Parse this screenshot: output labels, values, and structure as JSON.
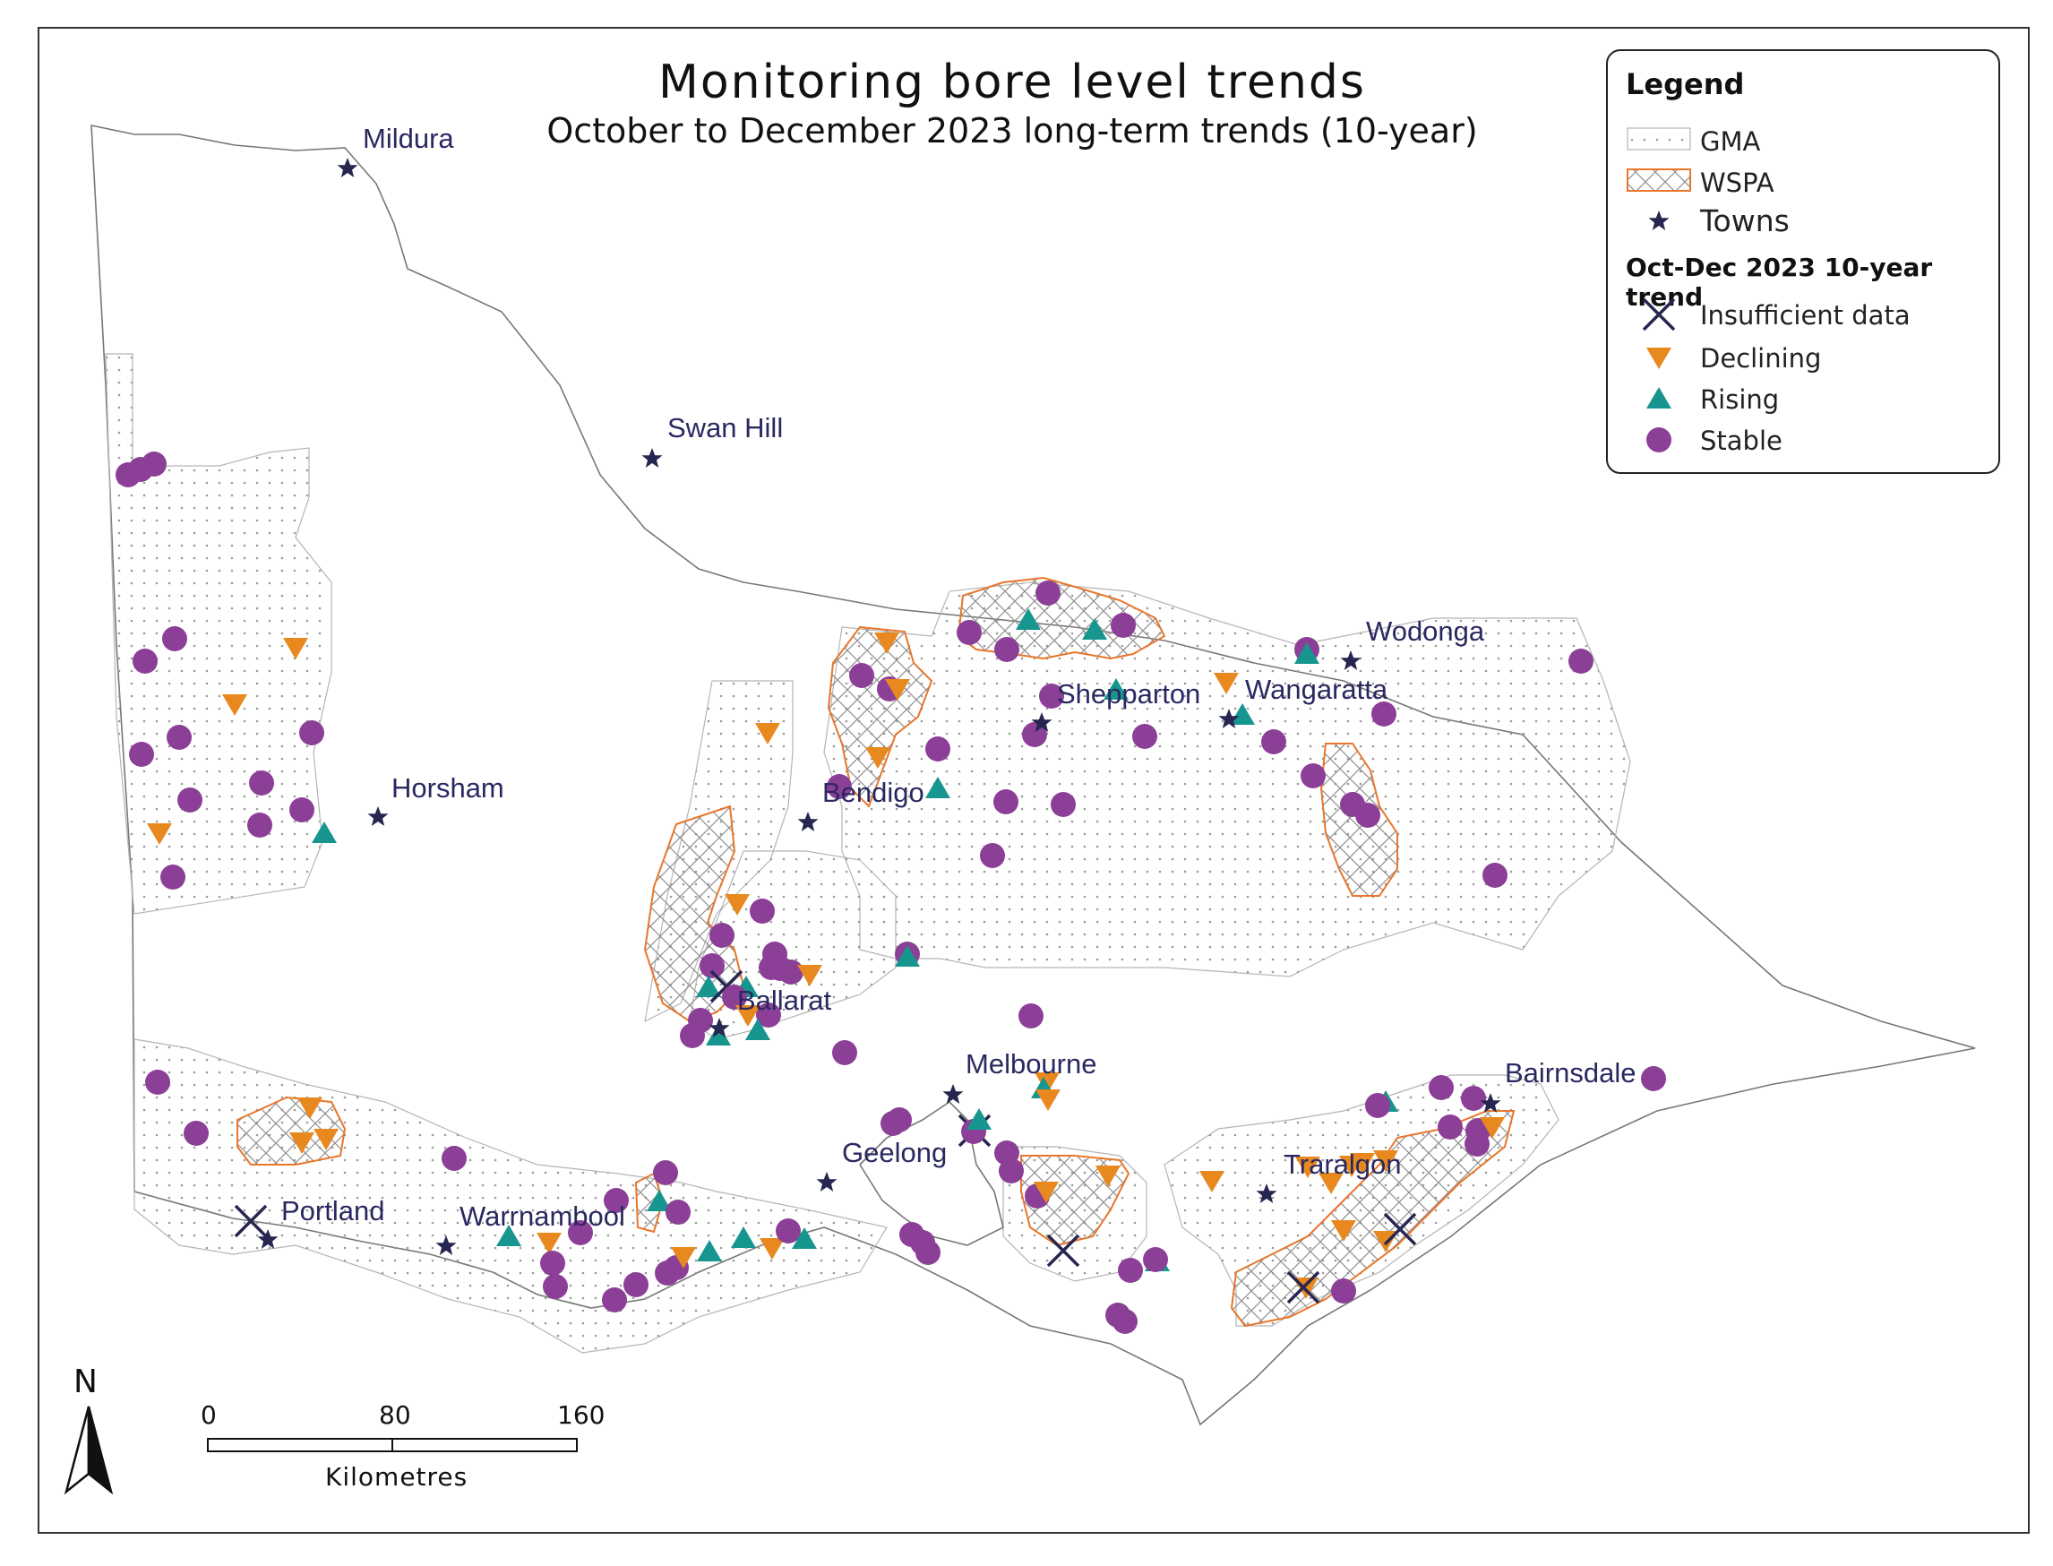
{
  "title": "Monitoring bore level trends",
  "subtitle": "October to December 2023 long-term trends (10-year)",
  "legend": {
    "title": "Legend",
    "gma": "GMA",
    "wspa": "WSPA",
    "towns": "Towns",
    "trend_title": "Oct-Dec 2023 10-year trend",
    "insufficient": "Insufficient data",
    "declining": "Declining",
    "rising": "Rising",
    "stable": "Stable"
  },
  "colors": {
    "stable": "#8b3f96",
    "declining": "#e8891f",
    "rising": "#17958f",
    "insufficient": "#262650",
    "town": "#262650",
    "wspa_outline": "#e8762b",
    "boundary": "#777777"
  },
  "towns": {
    "mildura": "Mildura",
    "swan_hill": "Swan Hill",
    "horsham": "Horsham",
    "bendigo": "Bendigo",
    "shepparton": "Shepparton",
    "wangaratta": "Wangaratta",
    "wodonga": "Wodonga",
    "ballarat": "Ballarat",
    "melbourne": "Melbourne",
    "geelong": "Geelong",
    "bairnsdale": "Bairnsdale",
    "traralgon": "Traralgon",
    "portland": "Portland",
    "warrnambool": "Warrnambool"
  },
  "scale": {
    "t0": "0",
    "t1": "80",
    "t2": "160",
    "unit": "Kilometres"
  },
  "north": "N"
}
